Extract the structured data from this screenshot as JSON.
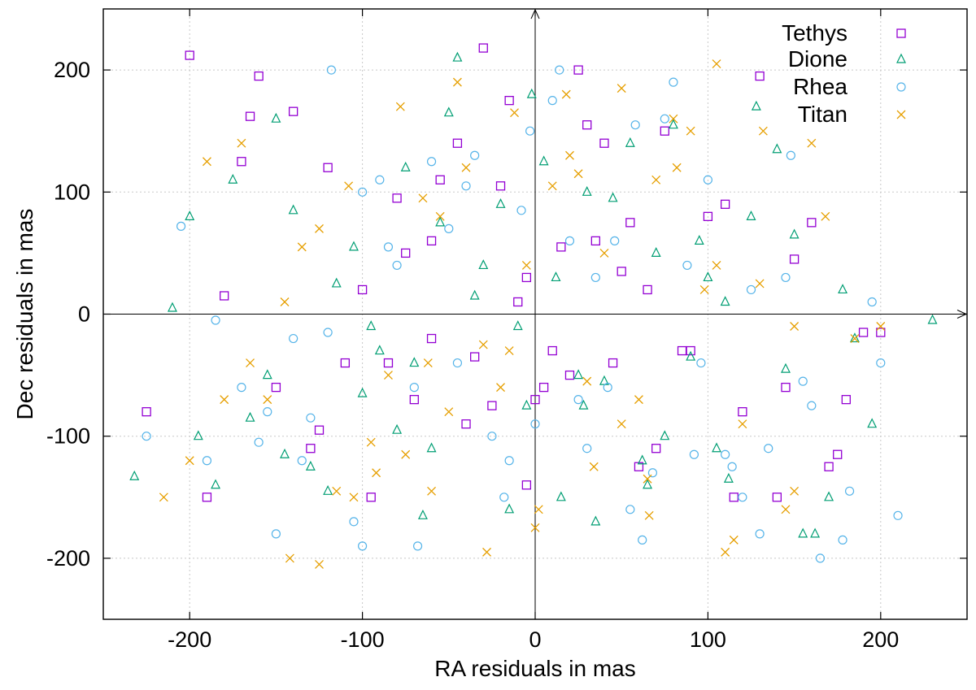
{
  "chart_data": {
    "type": "scatter",
    "title": "",
    "xlabel": "RA residuals in mas",
    "ylabel": "Dec residuals in mas",
    "xlim": [
      -250,
      250
    ],
    "ylim": [
      -250,
      250
    ],
    "xticks": [
      -200,
      -100,
      0,
      100,
      200
    ],
    "yticks": [
      -200,
      -100,
      0,
      100,
      200
    ],
    "xtick_labels": [
      "-200",
      "-100",
      "0",
      "100",
      "200"
    ],
    "ytick_labels": [
      "-200",
      "-100",
      "0",
      "100",
      "200"
    ],
    "grid": true,
    "legend_position": "top-right",
    "series": [
      {
        "name": "Tethys",
        "marker": "square",
        "color": "#9400d3",
        "x": [
          -200,
          -225,
          -190,
          -160,
          -165,
          -140,
          -120,
          -110,
          -95,
          -80,
          -60,
          -45,
          -30,
          -15,
          -5,
          10,
          25,
          40,
          55,
          75,
          90,
          110,
          130,
          160,
          170,
          200,
          -130,
          -100,
          -70,
          -40,
          -20,
          5,
          30,
          60,
          85,
          115,
          150,
          180,
          -180,
          -150,
          -85,
          -55,
          -25,
          15,
          45,
          70,
          100,
          140,
          190,
          -60,
          -10,
          20,
          50,
          -35,
          0,
          35,
          120,
          175,
          -170,
          -125,
          -75,
          -5,
          65,
          145
        ],
        "y": [
          212,
          -80,
          -150,
          195,
          162,
          166,
          120,
          -40,
          -150,
          95,
          60,
          140,
          218,
          175,
          30,
          -30,
          200,
          140,
          75,
          150,
          -30,
          90,
          195,
          75,
          -125,
          -15,
          -110,
          20,
          -70,
          -90,
          105,
          -60,
          155,
          -125,
          -30,
          -150,
          45,
          -70,
          15,
          -60,
          -40,
          110,
          -75,
          55,
          -40,
          -110,
          80,
          -150,
          -15,
          -20,
          10,
          -50,
          35,
          -35,
          -70,
          60,
          -80,
          -115,
          125,
          -95,
          50,
          -140,
          20,
          -60
        ],
        "x_count_note": ""
      },
      {
        "name": "Dione",
        "marker": "triangle",
        "color": "#009e73",
        "x": [
          -232,
          -200,
          -210,
          -195,
          -175,
          -155,
          -140,
          -120,
          -105,
          -90,
          -75,
          -60,
          -45,
          -30,
          -15,
          -2,
          12,
          28,
          45,
          62,
          80,
          95,
          112,
          128,
          145,
          162,
          178,
          195,
          230,
          -185,
          -150,
          -100,
          -55,
          -10,
          35,
          70,
          105,
          140,
          185,
          -165,
          -115,
          -65,
          -20,
          25,
          55,
          90,
          125,
          170,
          -130,
          -80,
          -35,
          5,
          40,
          75,
          110,
          150,
          -145,
          -95,
          -50,
          -5,
          30,
          65,
          100,
          155,
          -70,
          15
        ],
        "y": [
          -133,
          80,
          5,
          -100,
          110,
          -50,
          85,
          -145,
          55,
          -30,
          120,
          -110,
          210,
          40,
          -160,
          180,
          30,
          -75,
          95,
          -120,
          155,
          60,
          -135,
          170,
          -45,
          -180,
          20,
          -90,
          -5,
          -140,
          160,
          -65,
          75,
          -10,
          -170,
          50,
          -110,
          135,
          -20,
          -85,
          25,
          -165,
          90,
          -50,
          140,
          -35,
          80,
          -150,
          -125,
          -95,
          15,
          125,
          -55,
          -100,
          10,
          65,
          -115,
          -10,
          165,
          -75,
          100,
          -140,
          30,
          -180,
          -40,
          -150
        ],
        "x_count_note": ""
      },
      {
        "name": "Rhea",
        "marker": "circle",
        "color": "#56b4e9",
        "x": [
          -225,
          -205,
          -185,
          -160,
          -150,
          -135,
          -118,
          -100,
          -85,
          -68,
          -50,
          -35,
          -18,
          -3,
          14,
          30,
          46,
          62,
          80,
          96,
          114,
          130,
          148,
          165,
          182,
          200,
          210,
          -190,
          -140,
          -90,
          -45,
          -8,
          25,
          58,
          92,
          125,
          160,
          195,
          -170,
          -120,
          -70,
          -25,
          10,
          42,
          75,
          110,
          145,
          178,
          -155,
          -105,
          -60,
          -15,
          20,
          55,
          88,
          120,
          135,
          -130,
          -80,
          -40,
          0,
          35,
          68,
          100,
          155,
          -100
        ],
        "y": [
          -100,
          72,
          -5,
          -105,
          -180,
          -120,
          200,
          -190,
          55,
          -190,
          70,
          130,
          -150,
          150,
          200,
          -110,
          60,
          -185,
          190,
          -40,
          -125,
          -180,
          130,
          -200,
          -145,
          -40,
          -165,
          -120,
          -20,
          110,
          -40,
          85,
          -70,
          155,
          -115,
          20,
          -75,
          10,
          -60,
          -15,
          -60,
          -100,
          175,
          -60,
          160,
          -115,
          30,
          -185,
          -80,
          -170,
          125,
          -120,
          60,
          -160,
          40,
          -150,
          -110,
          -85,
          40,
          105,
          -90,
          30,
          -130,
          110,
          -55,
          100
        ],
        "x_count_note": ""
      },
      {
        "name": "Titan",
        "marker": "cross",
        "color": "#e69f00",
        "x": [
          -215,
          -200,
          -190,
          -170,
          -155,
          -142,
          -125,
          -108,
          -92,
          -78,
          -62,
          -45,
          -28,
          -12,
          2,
          18,
          34,
          50,
          66,
          82,
          98,
          115,
          132,
          150,
          168,
          185,
          200,
          -180,
          -135,
          -85,
          -40,
          0,
          40,
          80,
          120,
          160,
          -165,
          -115,
          -65,
          -20,
          25,
          65,
          105,
          145,
          -145,
          -95,
          -50,
          -5,
          30,
          70,
          110,
          150,
          -125,
          -75,
          -30,
          10,
          50,
          90,
          130,
          -105,
          -55,
          -15,
          20,
          60,
          105,
          -60
        ],
        "y": [
          -150,
          -120,
          125,
          140,
          -70,
          -200,
          -205,
          105,
          -130,
          170,
          -40,
          190,
          -195,
          165,
          -160,
          180,
          -125,
          185,
          -165,
          120,
          20,
          -185,
          150,
          -145,
          80,
          -20,
          -10,
          -70,
          55,
          -50,
          120,
          -175,
          50,
          160,
          -90,
          140,
          -40,
          -145,
          95,
          -60,
          115,
          -135,
          205,
          -160,
          10,
          -105,
          -80,
          40,
          -55,
          110,
          -195,
          -10,
          70,
          -115,
          -25,
          105,
          -90,
          150,
          25,
          -150,
          80,
          -30,
          130,
          -70,
          40,
          -145
        ],
        "x_count_note": ""
      }
    ]
  }
}
